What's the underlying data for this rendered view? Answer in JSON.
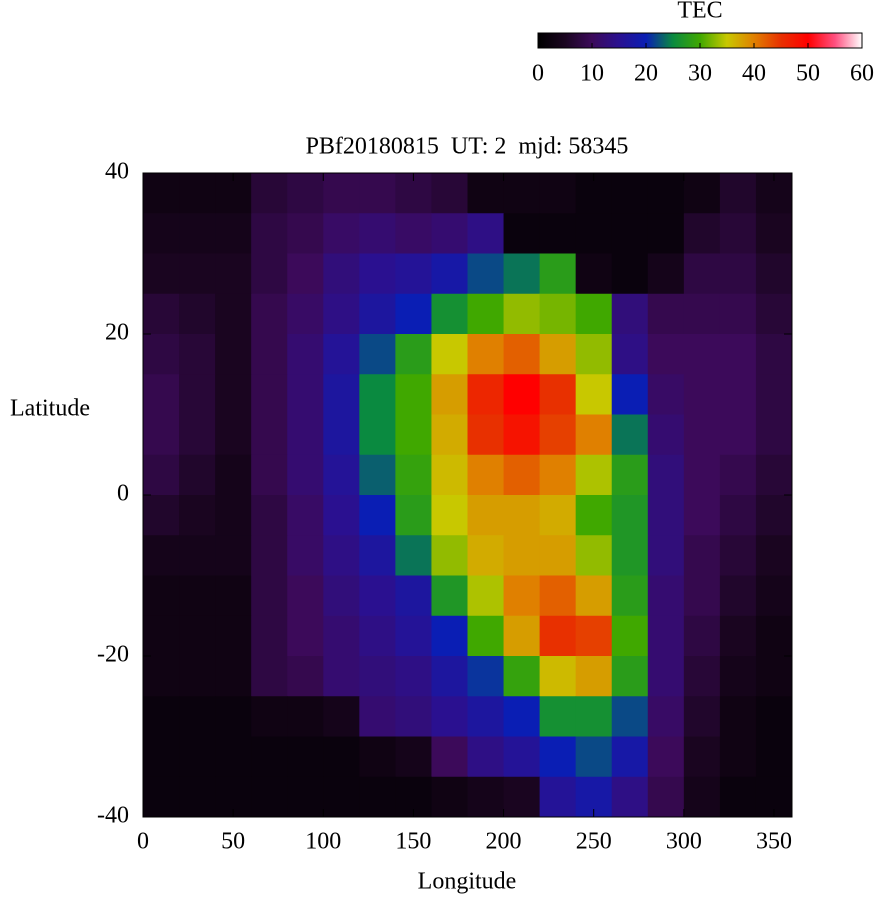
{
  "chart_data": {
    "type": "heatmap",
    "title": "PBf20180815  UT: 2  mjd: 58345",
    "xlabel": "Longitude",
    "ylabel": "Latitude",
    "colorbar_label": "TEC",
    "xlim": [
      0,
      360
    ],
    "xticks": [
      0,
      50,
      100,
      150,
      200,
      250,
      300,
      350
    ],
    "ylim": [
      -40,
      40
    ],
    "yticks": [
      40,
      20,
      0,
      -20,
      -40
    ],
    "zlim": [
      0,
      60
    ],
    "zticks": [
      0,
      10,
      20,
      30,
      40,
      50,
      60
    ],
    "colormap": [
      "#000000",
      "#1a0520",
      "#3c0a5a",
      "#2a1090",
      "#0a1eb4",
      "#0a8a40",
      "#40a800",
      "#c8c800",
      "#e08000",
      "#e83000",
      "#ff0000",
      "#ff5080",
      "#ffffff"
    ],
    "xbins": [
      0,
      20,
      40,
      60,
      80,
      100,
      120,
      140,
      160,
      180,
      200,
      220,
      240,
      260,
      280,
      300,
      320,
      340,
      360
    ],
    "ybins": [
      40,
      35,
      30,
      25,
      20,
      15,
      10,
      5,
      0,
      -5,
      -10,
      -15,
      -20,
      -25,
      -30,
      -35,
      -40
    ],
    "z": [
      [
        3,
        3,
        3,
        7,
        8,
        9,
        9,
        8,
        7,
        3,
        3,
        3,
        2,
        2,
        2,
        3,
        6,
        4
      ],
      [
        4,
        4,
        4,
        8,
        9,
        11,
        12,
        11,
        12,
        14,
        2,
        2,
        2,
        2,
        2,
        6,
        7,
        5
      ],
      [
        5,
        5,
        5,
        8,
        10,
        13,
        15,
        16,
        18,
        22,
        24,
        28,
        3,
        2,
        4,
        8,
        8,
        6
      ],
      [
        7,
        6,
        5,
        9,
        11,
        14,
        17,
        20,
        26,
        30,
        33,
        32,
        30,
        13,
        9,
        9,
        9,
        7
      ],
      [
        8,
        7,
        5,
        9,
        12,
        16,
        22,
        28,
        35,
        40,
        42,
        38,
        33,
        14,
        10,
        10,
        10,
        8
      ],
      [
        9,
        7,
        5,
        9,
        12,
        17,
        25,
        30,
        38,
        46,
        50,
        45,
        35,
        20,
        11,
        10,
        10,
        8
      ],
      [
        9,
        7,
        5,
        9,
        12,
        17,
        25,
        30,
        37,
        45,
        48,
        44,
        40,
        24,
        12,
        10,
        10,
        8
      ],
      [
        8,
        6,
        4,
        9,
        12,
        16,
        23,
        29,
        36,
        40,
        42,
        40,
        34,
        28,
        13,
        10,
        9,
        7
      ],
      [
        6,
        5,
        4,
        8,
        11,
        15,
        20,
        28,
        35,
        38,
        38,
        37,
        30,
        27,
        13,
        10,
        8,
        6
      ],
      [
        4,
        4,
        4,
        8,
        11,
        14,
        17,
        24,
        33,
        37,
        38,
        38,
        33,
        27,
        13,
        9,
        7,
        5
      ],
      [
        3,
        3,
        3,
        8,
        10,
        13,
        15,
        17,
        27,
        34,
        40,
        42,
        38,
        28,
        12,
        9,
        6,
        4
      ],
      [
        3,
        3,
        3,
        8,
        10,
        12,
        14,
        16,
        20,
        30,
        38,
        45,
        44,
        30,
        12,
        8,
        5,
        3
      ],
      [
        3,
        3,
        3,
        8,
        9,
        12,
        13,
        14,
        17,
        21,
        29,
        36,
        38,
        28,
        12,
        7,
        4,
        3
      ],
      [
        2,
        2,
        2,
        3,
        3,
        4,
        12,
        13,
        15,
        17,
        20,
        26,
        26,
        22,
        11,
        6,
        3,
        2
      ],
      [
        2,
        2,
        2,
        2,
        2,
        2,
        3,
        4,
        10,
        14,
        16,
        20,
        22,
        18,
        10,
        5,
        3,
        2
      ],
      [
        2,
        2,
        2,
        2,
        2,
        2,
        2,
        2,
        3,
        4,
        5,
        16,
        18,
        14,
        9,
        4,
        2,
        2
      ]
    ]
  }
}
